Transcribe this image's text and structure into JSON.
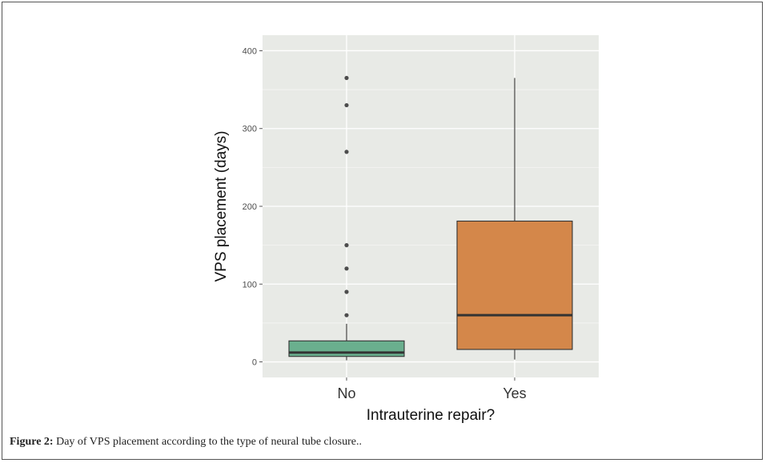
{
  "chart_data": {
    "type": "boxplot",
    "xlabel": "Intrauterine repair?",
    "ylabel": "VPS placement (days)",
    "ylim": [
      -20,
      420
    ],
    "yticks": [
      0,
      100,
      200,
      300,
      400
    ],
    "ytick_labels": [
      "0",
      "100",
      "200",
      "300",
      "400"
    ],
    "grid": true,
    "categories": [
      "No",
      "Yes"
    ],
    "boxes": [
      {
        "category": "No",
        "whisker_low": 2,
        "q1": 7,
        "median": 12,
        "q3": 27,
        "whisker_high": 49,
        "outliers": [
          60,
          90,
          120,
          150,
          270,
          330,
          365
        ],
        "color": "#6aaf8e"
      },
      {
        "category": "Yes",
        "whisker_low": 3,
        "q1": 16,
        "median": 60,
        "q3": 181,
        "whisker_high": 365,
        "outliers": [],
        "color": "#d4874a"
      }
    ],
    "panel_color": "#e8eae6"
  },
  "caption": {
    "label": "Figure 2:",
    "text": " Day of VPS placement according to the type of neural tube closure.."
  }
}
